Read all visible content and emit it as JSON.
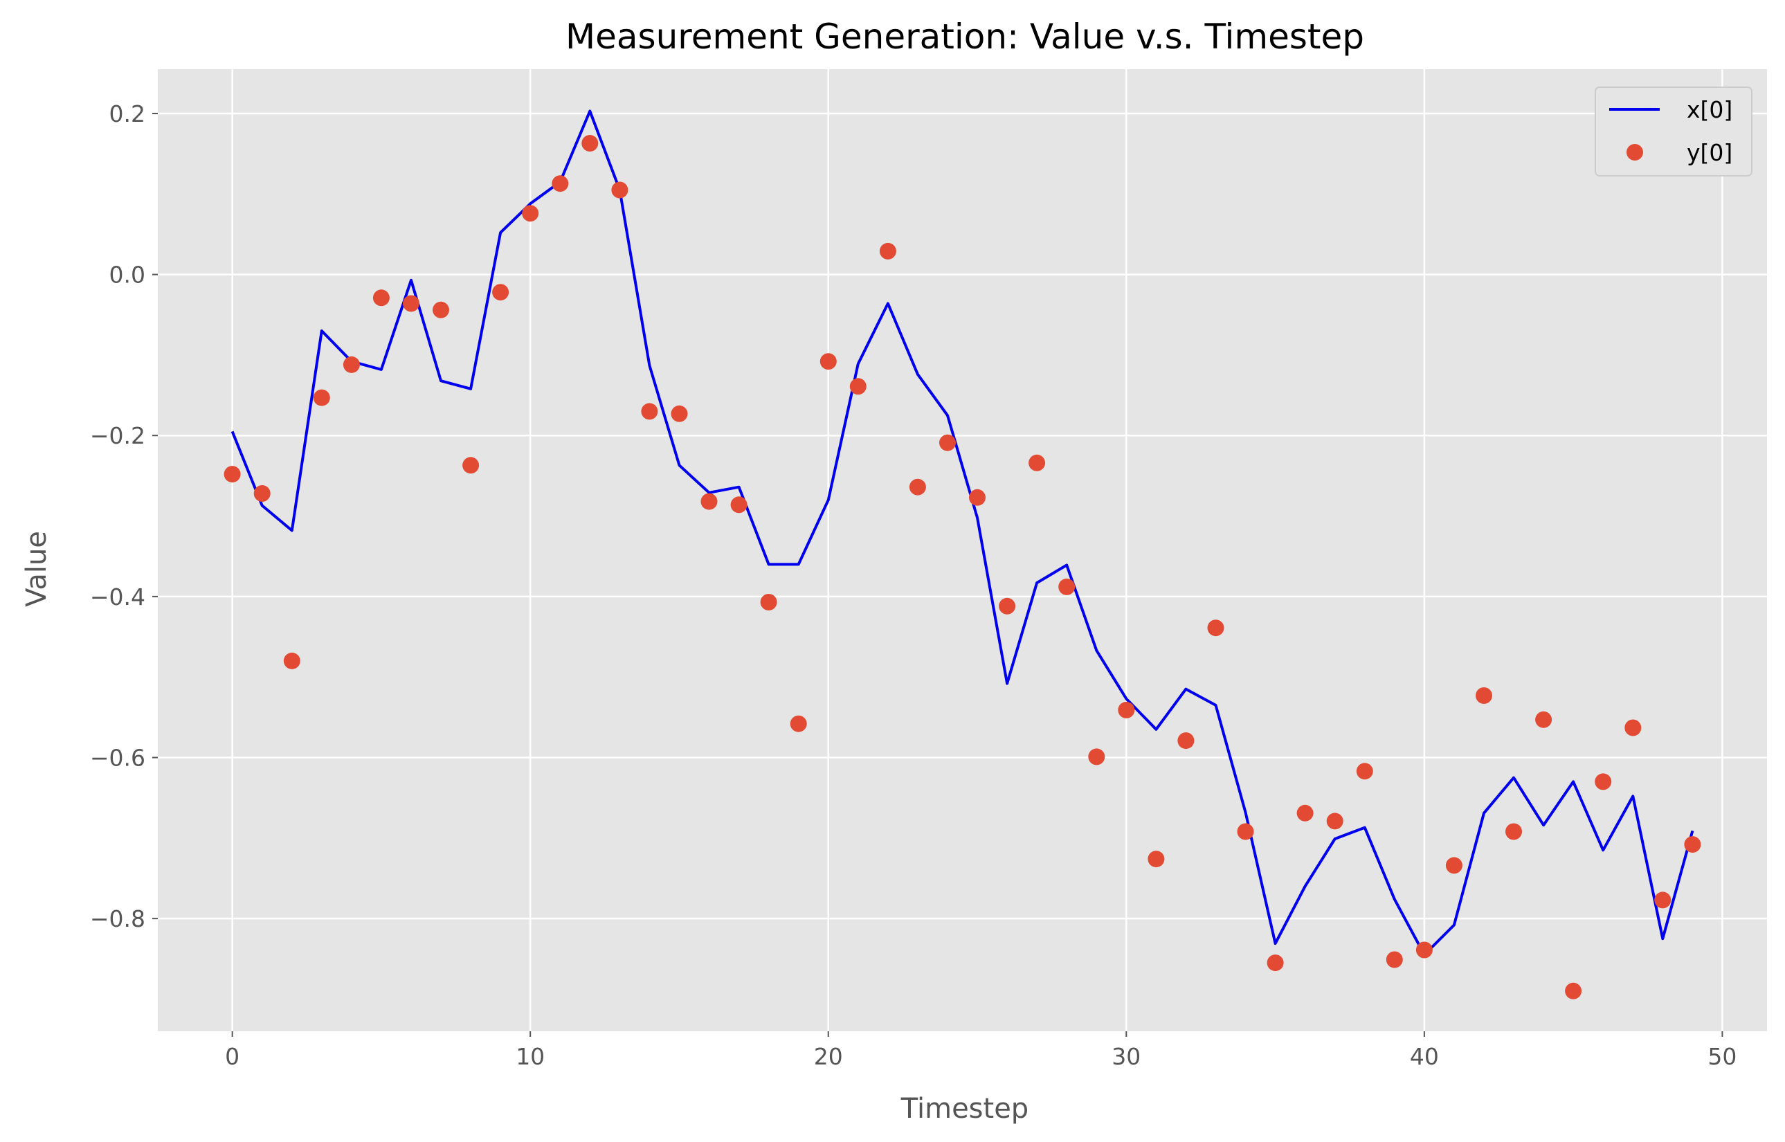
{
  "chart_data": {
    "type": "line",
    "title": "Measurement Generation: Value v.s. Timestep",
    "xlabel": "Timestep",
    "ylabel": "Value",
    "xlim": [
      -2.5,
      51.5
    ],
    "ylim": [
      -0.94,
      0.255
    ],
    "xticks": [
      0,
      10,
      20,
      30,
      40,
      50
    ],
    "xtick_labels": [
      "0",
      "10",
      "20",
      "30",
      "40",
      "50"
    ],
    "yticks": [
      0.2,
      0.0,
      -0.2,
      -0.4,
      -0.6,
      -0.8
    ],
    "ytick_labels": [
      "0.2",
      "0.0",
      "−0.2",
      "−0.4",
      "−0.6",
      "−0.8"
    ],
    "grid": true,
    "legend_position": "top-right",
    "x": [
      0,
      1,
      2,
      3,
      4,
      5,
      6,
      7,
      8,
      9,
      10,
      11,
      12,
      13,
      14,
      15,
      16,
      17,
      18,
      19,
      20,
      21,
      22,
      23,
      24,
      25,
      26,
      27,
      28,
      29,
      30,
      31,
      32,
      33,
      34,
      35,
      36,
      37,
      38,
      39,
      40,
      41,
      42,
      43,
      44,
      45,
      46,
      47,
      48,
      49
    ],
    "series": [
      {
        "name": "x[0]",
        "type": "line",
        "color": "#0000ee",
        "values": [
          -0.195,
          -0.287,
          -0.318,
          -0.07,
          -0.108,
          -0.118,
          -0.007,
          -0.132,
          -0.142,
          0.052,
          0.088,
          0.115,
          0.203,
          0.105,
          -0.113,
          -0.237,
          -0.271,
          -0.264,
          -0.36,
          -0.36,
          -0.28,
          -0.111,
          -0.036,
          -0.124,
          -0.175,
          -0.302,
          -0.508,
          -0.383,
          -0.361,
          -0.467,
          -0.527,
          -0.565,
          -0.515,
          -0.535,
          -0.668,
          -0.831,
          -0.76,
          -0.701,
          -0.687,
          -0.776,
          -0.845,
          -0.808,
          -0.669,
          -0.625,
          -0.684,
          -0.63,
          -0.715,
          -0.648,
          -0.825,
          -0.691
        ]
      },
      {
        "name": "y[0]",
        "type": "scatter",
        "color": "#e24a33",
        "values": [
          -0.248,
          -0.272,
          -0.48,
          -0.153,
          -0.112,
          -0.029,
          -0.036,
          -0.044,
          -0.237,
          -0.022,
          0.076,
          0.113,
          0.163,
          0.105,
          -0.17,
          -0.173,
          -0.282,
          -0.286,
          -0.407,
          -0.558,
          -0.108,
          -0.139,
          0.029,
          -0.264,
          -0.209,
          -0.277,
          -0.412,
          -0.234,
          -0.388,
          -0.599,
          -0.541,
          -0.726,
          -0.579,
          -0.439,
          -0.692,
          -0.855,
          -0.669,
          -0.679,
          -0.617,
          -0.851,
          -0.839,
          -0.734,
          -0.523,
          -0.692,
          -0.553,
          -0.89,
          -0.63,
          -0.563,
          -0.777,
          -0.708
        ]
      }
    ]
  }
}
